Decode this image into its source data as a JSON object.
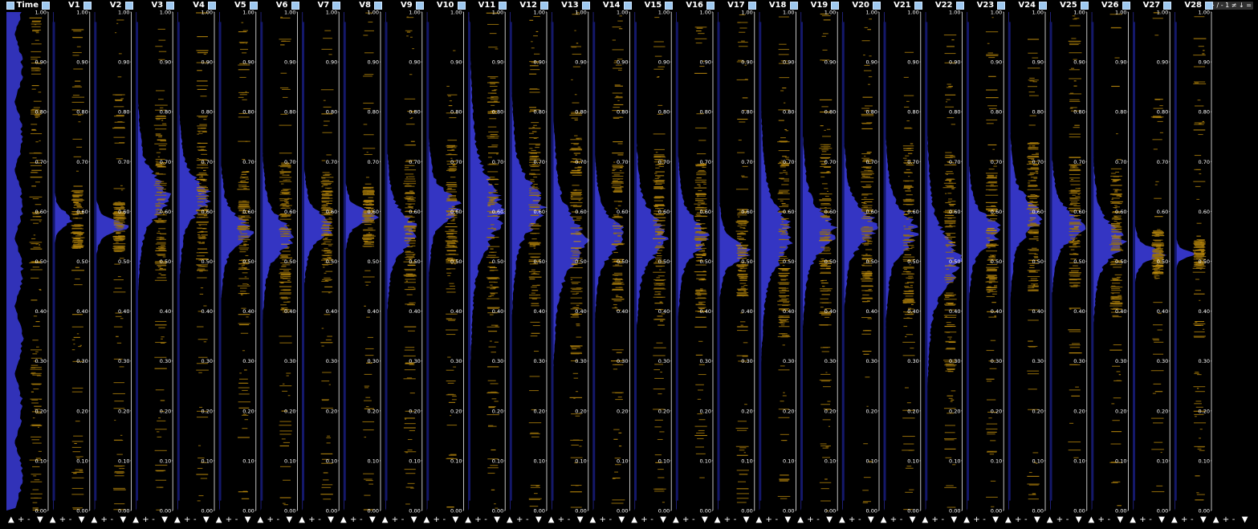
{
  "header": {
    "toolbar_label": "+ / - 1 ≠ ↓ ="
  },
  "columns": [
    {
      "label": "Time",
      "peak": 0.46,
      "spread": 0.45,
      "amp": 0.85,
      "count": 0
    },
    {
      "label": "V1",
      "peak": 0.585,
      "spread": 0.012,
      "amp": 0.5,
      "count": 0
    },
    {
      "label": "V2",
      "peak": 0.57,
      "spread": 0.01,
      "amp": 0.85,
      "count": 0
    },
    {
      "label": "V3",
      "peak": 0.63,
      "spread": 0.035,
      "amp": 0.8,
      "count": 0
    },
    {
      "label": "V4",
      "peak": 0.63,
      "spread": 0.03,
      "amp": 0.8,
      "count": 0
    },
    {
      "label": "V5",
      "peak": 0.56,
      "spread": 0.025,
      "amp": 0.8,
      "count": 0
    },
    {
      "label": "V6",
      "peak": 0.55,
      "spread": 0.03,
      "amp": 0.8,
      "count": 0
    },
    {
      "label": "V7",
      "peak": 0.57,
      "spread": 0.022,
      "amp": 0.8,
      "count": 0
    },
    {
      "label": "V8",
      "peak": 0.59,
      "spread": 0.012,
      "amp": 0.85,
      "count": 0
    },
    {
      "label": "V9",
      "peak": 0.56,
      "spread": 0.03,
      "amp": 0.8,
      "count": 0
    },
    {
      "label": "V10",
      "peak": 0.61,
      "spread": 0.025,
      "amp": 0.8,
      "count": 0
    },
    {
      "label": "V11",
      "peak": 0.6,
      "spread": 0.055,
      "amp": 0.85,
      "count": 0
    },
    {
      "label": "V12",
      "peak": 0.61,
      "spread": 0.04,
      "amp": 0.85,
      "count": 0
    },
    {
      "label": "V13",
      "peak": 0.54,
      "spread": 0.045,
      "amp": 0.85,
      "count": 0
    },
    {
      "label": "V14",
      "peak": 0.55,
      "spread": 0.03,
      "amp": 0.8,
      "count": 0
    },
    {
      "label": "V15",
      "peak": 0.55,
      "spread": 0.035,
      "amp": 0.8,
      "count": 0
    },
    {
      "label": "V16",
      "peak": 0.55,
      "spread": 0.03,
      "amp": 0.8,
      "count": 0
    },
    {
      "label": "V17",
      "peak": 0.52,
      "spread": 0.018,
      "amp": 0.8,
      "count": 0
    },
    {
      "label": "V18",
      "peak": 0.55,
      "spread": 0.045,
      "amp": 0.85,
      "count": 0
    },
    {
      "label": "V19",
      "peak": 0.56,
      "spread": 0.035,
      "amp": 0.85,
      "count": 0
    },
    {
      "label": "V20",
      "peak": 0.57,
      "spread": 0.03,
      "amp": 0.85,
      "count": 0
    },
    {
      "label": "V21",
      "peak": 0.56,
      "spread": 0.035,
      "amp": 0.8,
      "count": 0
    },
    {
      "label": "V22",
      "peak": 0.5,
      "spread": 0.045,
      "amp": 0.85,
      "count": 0
    },
    {
      "label": "V23",
      "peak": 0.56,
      "spread": 0.025,
      "amp": 0.85,
      "count": 0
    },
    {
      "label": "V24",
      "peak": 0.59,
      "spread": 0.03,
      "amp": 0.8,
      "count": 0
    },
    {
      "label": "V25",
      "peak": 0.57,
      "spread": 0.025,
      "amp": 0.85,
      "count": 0
    },
    {
      "label": "V26",
      "peak": 0.54,
      "spread": 0.03,
      "amp": 0.8,
      "count": 0
    },
    {
      "label": "V27",
      "peak": 0.515,
      "spread": 0.01,
      "amp": 0.85,
      "count": 0
    },
    {
      "label": "V28",
      "peak": 0.515,
      "spread": 0.006,
      "amp": 0.55,
      "count": 0
    }
  ],
  "axis": {
    "ticks": [
      "0.00",
      "0.10",
      "0.20",
      "0.30",
      "0.40",
      "0.50",
      "0.60",
      "0.70",
      "0.80",
      "0.90",
      "1.00"
    ]
  },
  "footer": {
    "controls": [
      "▲",
      "+",
      "-",
      "▼"
    ]
  },
  "colors": {
    "background": "#000000",
    "density": "#3a3bd8",
    "density_dark": "#14186a",
    "hist": "#9b7209",
    "hist_bright": "#c8930e",
    "axis": "#c0c0c0",
    "checkbox": "#9ec9f0"
  }
}
